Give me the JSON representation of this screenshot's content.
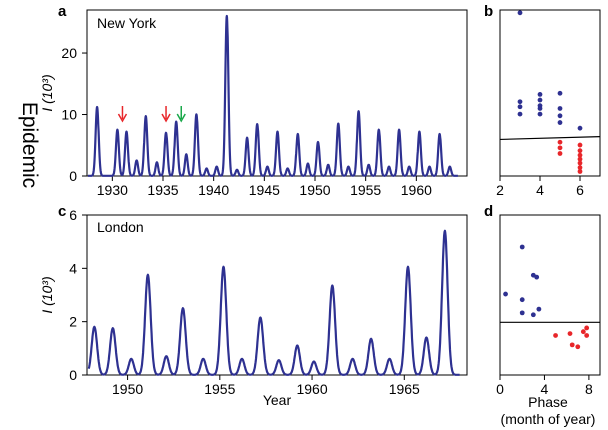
{
  "side_label": "Epidemic",
  "colors": {
    "line": "#2e3191",
    "red": "#e8262a",
    "green": "#1aa84a",
    "threshold": "#000000"
  },
  "chart_data": [
    {
      "panel": "a",
      "type": "line",
      "annotation": "New York",
      "ylabel": "I (10³)",
      "xlim": [
        1927.5,
        1965
      ],
      "ylim": [
        0,
        27
      ],
      "xticks": [
        1930,
        1935,
        1940,
        1945,
        1950,
        1955,
        1960
      ],
      "yticks": [
        0,
        10,
        20
      ],
      "epidemic_peaks": [
        [
          1928.5,
          11.2
        ],
        [
          1930.5,
          7.5
        ],
        [
          1931.4,
          7.2
        ],
        [
          1932.4,
          2.5
        ],
        [
          1933.3,
          9.7
        ],
        [
          1934.4,
          2.2
        ],
        [
          1935.3,
          7.0
        ],
        [
          1936.3,
          8.8
        ],
        [
          1937.3,
          3.5
        ],
        [
          1938.3,
          10.0
        ],
        [
          1939.3,
          1.2
        ],
        [
          1940.3,
          1.5
        ],
        [
          1941.3,
          26.0
        ],
        [
          1942.3,
          1.0
        ],
        [
          1943.3,
          6.2
        ],
        [
          1944.3,
          8.4
        ],
        [
          1945.3,
          1.5
        ],
        [
          1946.3,
          7.2
        ],
        [
          1947.3,
          1.2
        ],
        [
          1948.3,
          6.8
        ],
        [
          1949.3,
          2.0
        ],
        [
          1950.3,
          5.5
        ],
        [
          1951.3,
          1.8
        ],
        [
          1952.3,
          8.5
        ],
        [
          1953.3,
          1.5
        ],
        [
          1954.3,
          10.5
        ],
        [
          1955.3,
          1.8
        ],
        [
          1956.3,
          7.5
        ],
        [
          1957.3,
          1.5
        ],
        [
          1958.3,
          7.5
        ],
        [
          1959.3,
          1.5
        ],
        [
          1960.3,
          7.2
        ],
        [
          1961.3,
          1.5
        ],
        [
          1962.3,
          6.8
        ],
        [
          1963.3,
          1.5
        ]
      ],
      "arrows": [
        {
          "year": 1931.0,
          "color": "red"
        },
        {
          "year": 1935.3,
          "color": "red"
        },
        {
          "year": 1936.8,
          "color": "green"
        }
      ]
    },
    {
      "panel": "b",
      "type": "scatter",
      "xlim": [
        2,
        7
      ],
      "xticks": [
        2,
        4,
        6
      ],
      "ylim": [
        -3.5,
        26
      ],
      "threshold": [
        [
          2,
          3.0
        ],
        [
          7,
          3.5
        ]
      ],
      "points_blue": [
        [
          3,
          25.5
        ],
        [
          3,
          9.7
        ],
        [
          3,
          8.8
        ],
        [
          3,
          7.5
        ],
        [
          4,
          11.0
        ],
        [
          4,
          10.0
        ],
        [
          4,
          9.0
        ],
        [
          4,
          8.5
        ],
        [
          4,
          7.5
        ],
        [
          5,
          11.2
        ],
        [
          5,
          8.5
        ],
        [
          5,
          7.2
        ],
        [
          5,
          6.0
        ],
        [
          6,
          5.0
        ]
      ],
      "points_red": [
        [
          5,
          2.5
        ],
        [
          5,
          1.5
        ],
        [
          5,
          0.5
        ],
        [
          6,
          2.0
        ],
        [
          6,
          1.0
        ],
        [
          6,
          0.2
        ],
        [
          6,
          -0.5
        ],
        [
          6,
          -1.2
        ],
        [
          6,
          -2.0
        ],
        [
          6,
          -2.7
        ]
      ]
    },
    {
      "panel": "c",
      "type": "line",
      "annotation": "London",
      "ylabel": "I (10³)",
      "xlabel": "Year",
      "xlim": [
        1947.8,
        1968.4
      ],
      "ylim": [
        0,
        6
      ],
      "xticks": [
        1950,
        1955,
        1960,
        1965
      ],
      "yticks": [
        0,
        2,
        4,
        6
      ],
      "epidemic_peaks": [
        [
          1948.2,
          1.8
        ],
        [
          1949.2,
          1.75
        ],
        [
          1950.2,
          0.6
        ],
        [
          1951.1,
          3.75
        ],
        [
          1952.1,
          0.7
        ],
        [
          1953.0,
          2.5
        ],
        [
          1954.1,
          0.6
        ],
        [
          1955.2,
          4.05
        ],
        [
          1956.2,
          0.6
        ],
        [
          1957.2,
          2.15
        ],
        [
          1958.2,
          0.55
        ],
        [
          1959.2,
          1.1
        ],
        [
          1960.1,
          0.5
        ],
        [
          1961.1,
          3.35
        ],
        [
          1962.2,
          0.6
        ],
        [
          1963.2,
          1.35
        ],
        [
          1964.2,
          0.6
        ],
        [
          1965.2,
          4.05
        ],
        [
          1966.2,
          1.4
        ],
        [
          1967.2,
          5.4
        ]
      ]
    },
    {
      "panel": "d",
      "type": "scatter",
      "xlabel": "Phase\n(month of year)",
      "xlim": [
        0,
        9
      ],
      "xticks": [
        0,
        4,
        8
      ],
      "ylim": [
        -1.5,
        7
      ],
      "threshold": [
        [
          0,
          1.3
        ],
        [
          9,
          1.3
        ]
      ],
      "points_blue": [
        [
          0.5,
          2.8
        ],
        [
          2.0,
          5.3
        ],
        [
          2.0,
          2.5
        ],
        [
          2.0,
          1.8
        ],
        [
          3.0,
          3.8
        ],
        [
          3.3,
          3.7
        ],
        [
          3.5,
          2.0
        ],
        [
          3.0,
          1.7
        ]
      ],
      "points_red": [
        [
          5.0,
          0.6
        ],
        [
          6.3,
          0.7
        ],
        [
          6.5,
          0.1
        ],
        [
          7.0,
          0.0
        ],
        [
          7.5,
          0.8
        ],
        [
          7.8,
          1.0
        ],
        [
          7.8,
          0.6
        ]
      ]
    }
  ],
  "tick_labels": {
    "a_x": [
      "1930",
      "1935",
      "1940",
      "1945",
      "1950",
      "1955",
      "1960"
    ],
    "a_y": [
      "0",
      "10",
      "20"
    ],
    "b_x": [
      "2",
      "4",
      "6"
    ],
    "c_x": [
      "1950",
      "1955",
      "1960",
      "1965"
    ],
    "c_y": [
      "0",
      "2",
      "4",
      "6"
    ],
    "d_x": [
      "0",
      "4",
      "8"
    ]
  },
  "labels": {
    "a": "a",
    "b": "b",
    "c": "c",
    "d": "d",
    "ny": "New York",
    "london": "London",
    "ylabel_a": "I (10³)",
    "ylabel_c": "I (10³)",
    "xlabel_c": "Year",
    "xlabel_d1": "Phase",
    "xlabel_d2": "(month of year)"
  }
}
